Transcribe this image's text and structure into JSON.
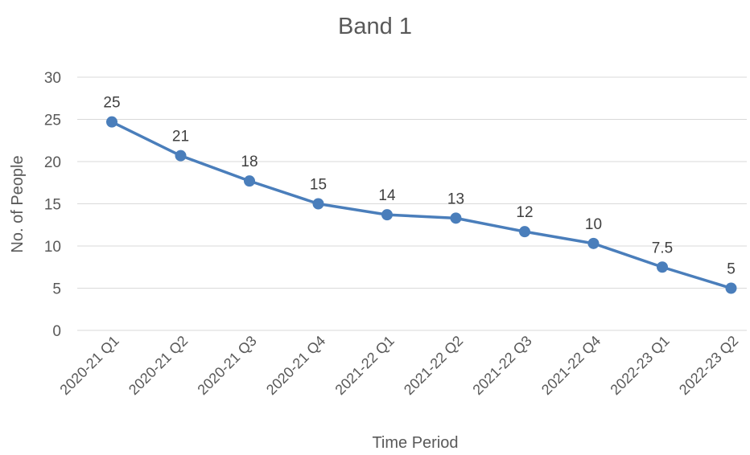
{
  "chart_data": {
    "type": "line",
    "title": "Band 1",
    "xlabel": "Time Period",
    "ylabel": "No. of People",
    "categories": [
      "2020-21 Q1",
      "2020-21 Q2",
      "2020-21 Q3",
      "2020-21 Q4",
      "2021-22 Q1",
      "2021-22 Q2",
      "2021-22 Q3",
      "2021-22 Q4",
      "2022-23 Q1",
      "2022-23 Q2"
    ],
    "series": [
      {
        "values": [
          24.7,
          20.7,
          17.7,
          15,
          13.7,
          13.3,
          11.7,
          10.3,
          7.5,
          5
        ],
        "data_labels": [
          "25",
          "21",
          "18",
          "15",
          "14",
          "13",
          "12",
          "10",
          "7.5",
          "5"
        ]
      }
    ],
    "ylim": [
      0,
      30
    ],
    "yticks": [
      0,
      5,
      10,
      15,
      20,
      25,
      30
    ],
    "grid": true,
    "legend": "none",
    "colors": {
      "line": "#4a7ebb",
      "marker": "#4a7ebb",
      "gridline": "#d9d9d9",
      "text": "#595959",
      "data_label": "#404040"
    }
  }
}
